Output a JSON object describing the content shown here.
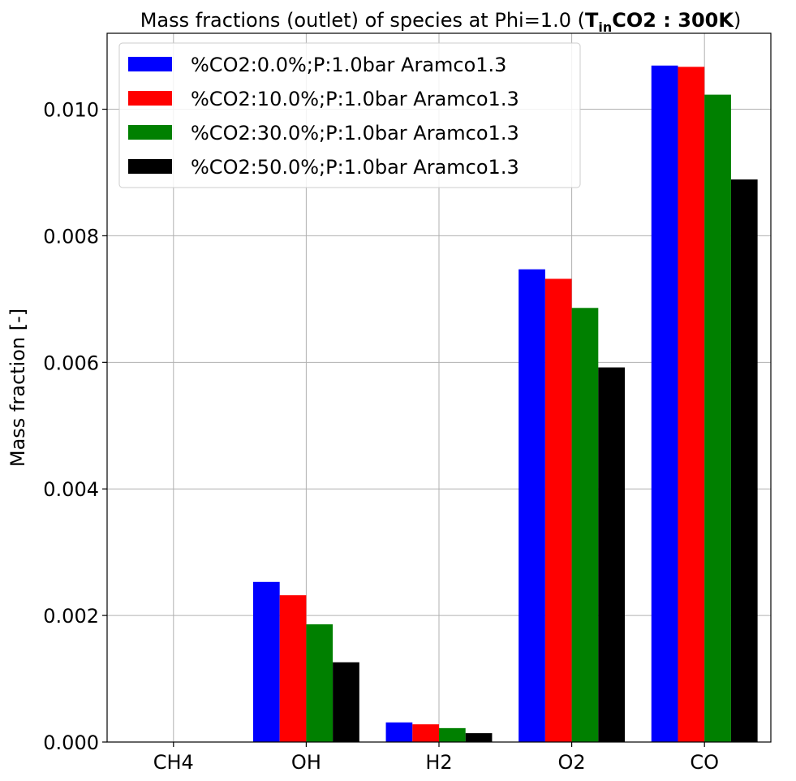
{
  "chart_data": {
    "type": "bar",
    "title_prefix": "Mass fractions (outlet) of species at Phi=1.0  (",
    "title_math_T": "T",
    "title_math_sub": "in",
    "title_math_rest": "CO2 : 300K",
    "title_suffix": ")",
    "xlabel": "",
    "ylabel": "Mass fraction [-]",
    "categories": [
      "CH4",
      "OH",
      "H2",
      "O2",
      "CO"
    ],
    "ylim": [
      0,
      0.0112
    ],
    "yticks": [
      0.0,
      0.002,
      0.004,
      0.006,
      0.008,
      0.01
    ],
    "ytick_labels": [
      "0.000",
      "0.002",
      "0.004",
      "0.006",
      "0.008",
      "0.010"
    ],
    "grid": true,
    "legend_position": "upper-left",
    "series": [
      {
        "name": "%CO2:0.0%;P:1.0bar Aramco1.3",
        "color": "#0000ff",
        "values": [
          0.0,
          0.00253,
          0.00031,
          0.00747,
          0.01069
        ]
      },
      {
        "name": "%CO2:10.0%;P:1.0bar Aramco1.3",
        "color": "#ff0000",
        "values": [
          0.0,
          0.00232,
          0.00028,
          0.00732,
          0.01067
        ]
      },
      {
        "name": "%CO2:30.0%;P:1.0bar Aramco1.3",
        "color": "#008000",
        "values": [
          0.0,
          0.00186,
          0.00022,
          0.00686,
          0.01023
        ]
      },
      {
        "name": "%CO2:50.0%;P:1.0bar Aramco1.3",
        "color": "#000000",
        "values": [
          0.0,
          0.00126,
          0.00014,
          0.00592,
          0.00889
        ]
      }
    ]
  }
}
